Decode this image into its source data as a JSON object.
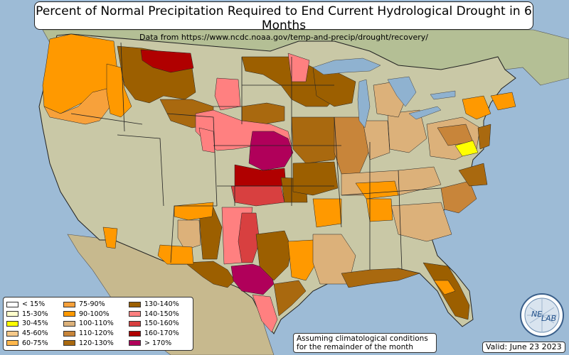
{
  "title": "Percent of Normal Precipitation Required to End Current Hydrological Drought in 6 Months",
  "subtitle": "Data from https://www.ncdc.noaa.gov/temp-and-precip/drought/recovery/",
  "legend": [
    {
      "label": "< 15%",
      "color": "#ffffff"
    },
    {
      "label": "15-30%",
      "color": "#ffffcc"
    },
    {
      "label": "30-45%",
      "color": "#ffff00"
    },
    {
      "label": "45-60%",
      "color": "#f5c98a"
    },
    {
      "label": "60-75%",
      "color": "#ffb84d"
    },
    {
      "label": "75-90%",
      "color": "#f7a13b"
    },
    {
      "label": "90-100%",
      "color": "#ff9900"
    },
    {
      "label": "100-110%",
      "color": "#dcb17a"
    },
    {
      "label": "110-120%",
      "color": "#c8853a"
    },
    {
      "label": "120-130%",
      "color": "#a9690f"
    },
    {
      "label": "130-140%",
      "color": "#9c5f00"
    },
    {
      "label": "140-150%",
      "color": "#ff8080"
    },
    {
      "label": "150-160%",
      "color": "#d84040"
    },
    {
      "label": "160-170%",
      "color": "#b00000"
    },
    {
      "label": "> 170%",
      "color": "#b0005a"
    }
  ],
  "note": {
    "line1": "Assuming climatological conditions",
    "line2": "for the remainder of the month"
  },
  "valid": "Valid: June 23 2023",
  "logo": {
    "text1": "NE",
    "text2": "LAB"
  },
  "colors": {
    "ocean": "#9dbbd6",
    "land": "#c9c8a6",
    "canada": "#b4bf95",
    "mexico": "#c7b98e",
    "lakes": "#8fb2d0",
    "boundary": "#222222"
  }
}
